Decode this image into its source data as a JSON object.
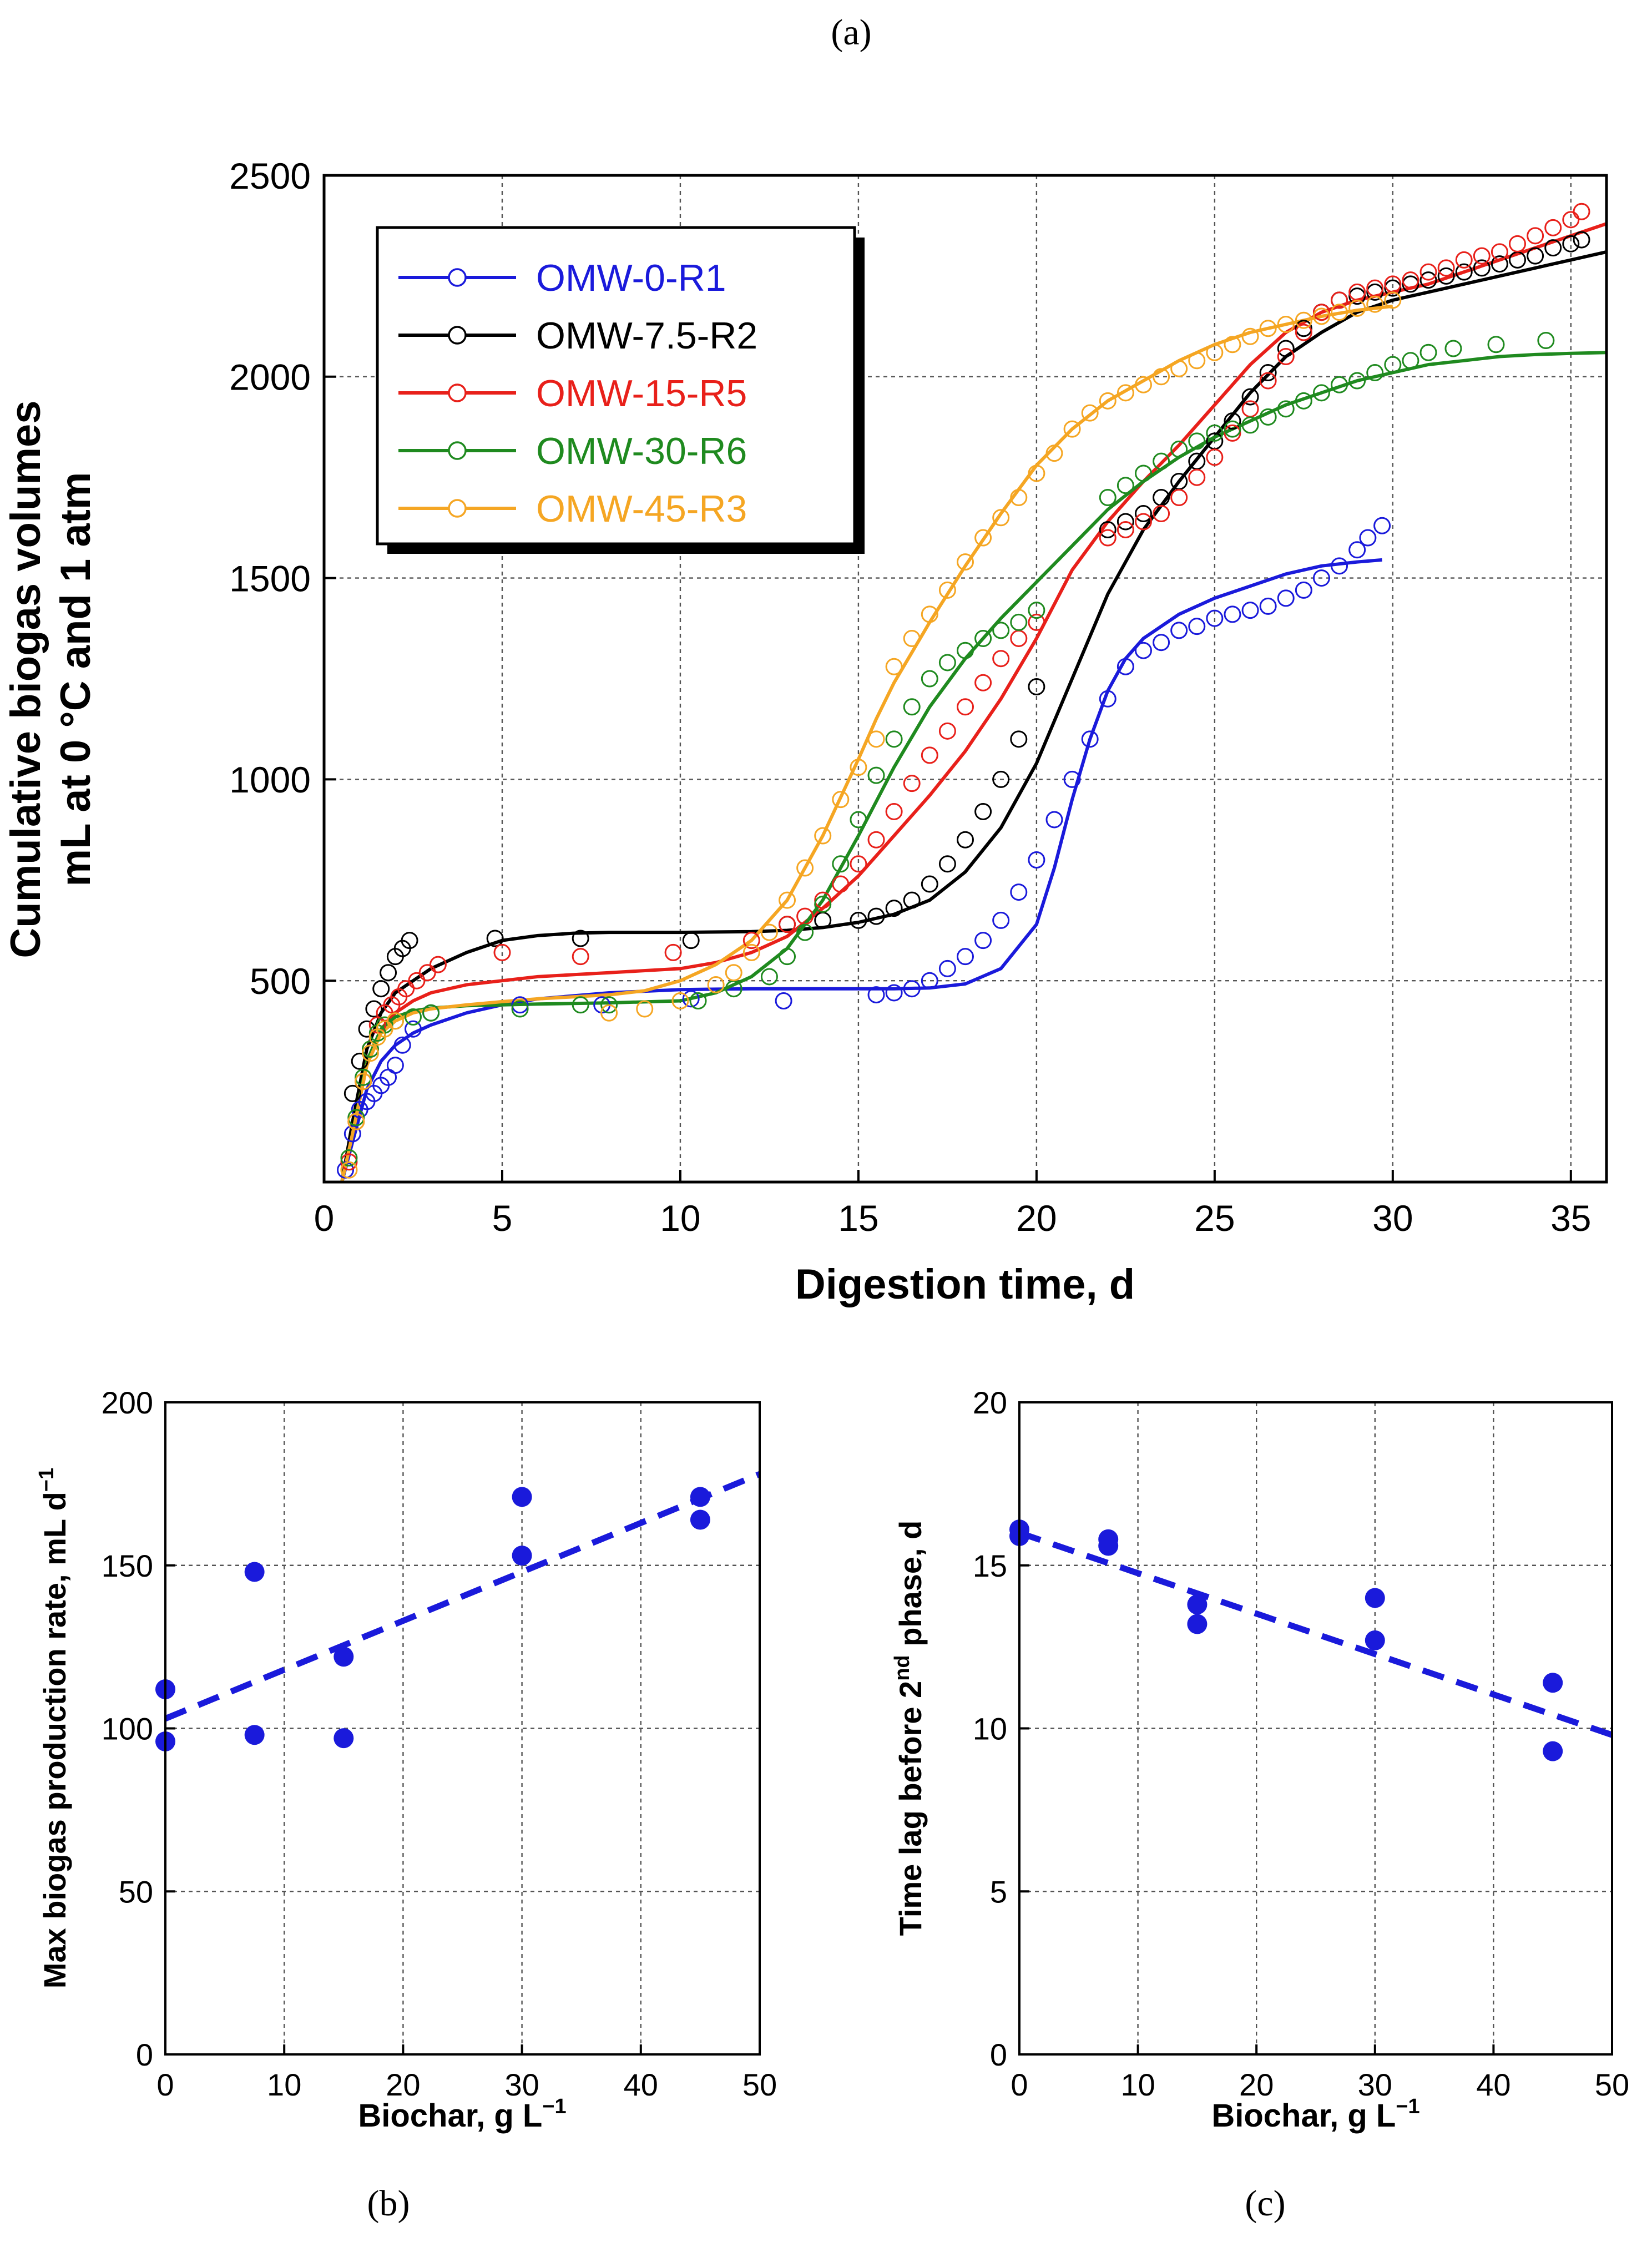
{
  "panel_labels": {
    "a": "(a)",
    "b": "(b)",
    "c": "(c)"
  },
  "chart_data": [
    {
      "id": "a",
      "type": "scatter",
      "xlabel": "Digestion time, d",
      "ylabel_line1": "Cumulative biogas volumes",
      "ylabel_line2": "mL at 0 °C and 1 atm",
      "xlim": [
        0,
        36
      ],
      "ylim": [
        0,
        2500
      ],
      "x_ticks": [
        0,
        5,
        10,
        15,
        20,
        25,
        30,
        35
      ],
      "y_ticks": [
        500,
        1000,
        1500,
        2000,
        2500
      ],
      "x_tick_labels": [
        "0",
        "5",
        "10",
        "15",
        "20",
        "25",
        "30",
        "35"
      ],
      "y_tick_labels": [
        "500",
        "1000",
        "1500",
        "2000",
        "2500"
      ],
      "grid": true,
      "legend_position": "top-left",
      "series": [
        {
          "name": "OMW-0-R1",
          "color": "#1a1adb",
          "fit_x": [
            0.5,
            0.8,
            1.2,
            1.6,
            2,
            2.5,
            3,
            4,
            5,
            6,
            8,
            10,
            12,
            14,
            16,
            17,
            18,
            19,
            20,
            20.5,
            21,
            21.5,
            22,
            22.5,
            23,
            24,
            25,
            26,
            27,
            28,
            29,
            29.7
          ],
          "fit_y": [
            0,
            100,
            230,
            300,
            340,
            370,
            390,
            420,
            440,
            455,
            470,
            478,
            480,
            480,
            480,
            482,
            492,
            530,
            640,
            780,
            950,
            1100,
            1220,
            1300,
            1350,
            1410,
            1450,
            1480,
            1510,
            1530,
            1540,
            1545
          ],
          "obs_x": [
            0.6,
            0.8,
            1.0,
            1.2,
            1.4,
            1.6,
            1.8,
            2.0,
            2.2,
            2.5,
            3.0,
            5.5,
            7.8,
            10.3,
            12.9,
            15.5,
            16.0,
            16.5,
            17.0,
            17.5,
            18.0,
            18.5,
            19.0,
            19.5,
            20.0,
            20.5,
            21.0,
            21.5,
            22.0,
            22.5,
            23.0,
            23.5,
            24.0,
            24.5,
            25.0,
            25.5,
            26.0,
            26.5,
            27.0,
            27.5,
            28.0,
            28.5,
            29.0,
            29.3,
            29.7
          ],
          "obs_y": [
            30,
            120,
            180,
            200,
            220,
            240,
            260,
            290,
            340,
            380,
            420,
            440,
            440,
            455,
            450,
            465,
            470,
            480,
            500,
            530,
            560,
            600,
            650,
            720,
            800,
            900,
            1000,
            1100,
            1200,
            1280,
            1320,
            1340,
            1370,
            1380,
            1400,
            1410,
            1420,
            1430,
            1450,
            1470,
            1500,
            1530,
            1570,
            1600,
            1630
          ]
        },
        {
          "name": "OMW-7.5-R2",
          "color": "#000000",
          "fit_x": [
            0.5,
            0.8,
            1.2,
            1.6,
            2,
            2.5,
            3,
            4,
            5,
            6,
            7,
            8,
            10,
            12,
            13,
            14,
            15,
            16,
            17,
            18,
            19,
            20,
            21,
            22,
            23,
            24,
            25,
            26,
            27,
            28,
            29,
            30,
            31,
            32,
            33,
            34,
            35,
            36
          ],
          "fit_y": [
            0,
            150,
            330,
            420,
            470,
            500,
            530,
            570,
            600,
            612,
            618,
            620,
            620,
            622,
            625,
            632,
            645,
            665,
            700,
            770,
            880,
            1040,
            1250,
            1460,
            1620,
            1740,
            1850,
            1960,
            2050,
            2110,
            2160,
            2190,
            2210,
            2230,
            2250,
            2270,
            2290,
            2310
          ],
          "obs_x": [
            0.8,
            1.0,
            1.2,
            1.4,
            1.6,
            1.8,
            2.0,
            2.2,
            2.4,
            4.8,
            7.2,
            10.3,
            13.0,
            14.0,
            15.0,
            15.5,
            16.0,
            16.5,
            17.0,
            17.5,
            18.0,
            18.5,
            19.0,
            19.5,
            20.0,
            22.0,
            22.5,
            23.0,
            23.5,
            24.0,
            24.5,
            25.0,
            25.5,
            26.0,
            26.5,
            27.0,
            27.5,
            28.0,
            28.5,
            29.0,
            29.5,
            30.0,
            30.5,
            31.0,
            31.5,
            32.0,
            32.5,
            33.0,
            33.5,
            34.0,
            34.5,
            35.0,
            35.3
          ],
          "obs_y": [
            220,
            300,
            380,
            430,
            480,
            520,
            560,
            580,
            600,
            605,
            605,
            600,
            640,
            650,
            650,
            660,
            680,
            700,
            740,
            790,
            850,
            920,
            1000,
            1100,
            1230,
            1620,
            1640,
            1660,
            1700,
            1740,
            1790,
            1840,
            1890,
            1950,
            2010,
            2070,
            2120,
            2160,
            2190,
            2200,
            2210,
            2220,
            2230,
            2240,
            2250,
            2260,
            2270,
            2280,
            2290,
            2300,
            2320,
            2330,
            2340
          ]
        },
        {
          "name": "OMW-15-R5",
          "color": "#e8201a",
          "fit_x": [
            0.5,
            0.8,
            1.2,
            1.6,
            2,
            2.5,
            3,
            4,
            5,
            6,
            8,
            10,
            11,
            12,
            13,
            14,
            15,
            16,
            17,
            18,
            19,
            20,
            21,
            22,
            23,
            24,
            25,
            26,
            27,
            28,
            29,
            30,
            31,
            32,
            33,
            34,
            35,
            36
          ],
          "fit_y": [
            0,
            120,
            290,
            380,
            420,
            450,
            470,
            490,
            500,
            510,
            520,
            530,
            545,
            570,
            610,
            680,
            760,
            860,
            960,
            1070,
            1200,
            1350,
            1520,
            1640,
            1740,
            1830,
            1930,
            2030,
            2110,
            2160,
            2190,
            2210,
            2230,
            2260,
            2290,
            2320,
            2350,
            2380
          ],
          "obs_x": [
            0.7,
            0.9,
            1.1,
            1.3,
            1.5,
            1.7,
            1.9,
            2.1,
            2.3,
            2.6,
            2.9,
            3.2,
            5.0,
            7.2,
            9.8,
            12.0,
            13.0,
            13.5,
            14.0,
            14.5,
            15.0,
            15.5,
            16.0,
            16.5,
            17.0,
            17.5,
            18.0,
            18.5,
            19.0,
            19.5,
            20.0,
            22.0,
            22.5,
            23.0,
            23.5,
            24.0,
            24.5,
            25.0,
            25.5,
            26.0,
            26.5,
            27.0,
            27.5,
            28.0,
            28.5,
            29.0,
            29.5,
            30.0,
            30.5,
            31.0,
            31.5,
            32.0,
            32.5,
            33.0,
            33.5,
            34.0,
            34.5,
            35.0,
            35.3
          ],
          "obs_y": [
            50,
            150,
            250,
            330,
            390,
            420,
            440,
            460,
            480,
            500,
            520,
            540,
            570,
            560,
            570,
            600,
            640,
            660,
            700,
            740,
            790,
            850,
            920,
            990,
            1060,
            1120,
            1180,
            1240,
            1300,
            1350,
            1390,
            1600,
            1620,
            1640,
            1660,
            1700,
            1750,
            1800,
            1860,
            1920,
            1990,
            2050,
            2110,
            2160,
            2190,
            2210,
            2220,
            2230,
            2240,
            2260,
            2270,
            2290,
            2300,
            2310,
            2330,
            2350,
            2370,
            2390,
            2410
          ]
        },
        {
          "name": "OMW-30-R6",
          "color": "#1f8a1f",
          "fit_x": [
            0.5,
            0.8,
            1.2,
            1.6,
            2,
            2.5,
            3,
            4,
            5,
            6,
            8,
            10,
            11,
            12,
            13,
            14,
            15,
            16,
            17,
            18,
            19,
            20,
            21,
            22,
            23,
            24,
            25,
            26,
            27,
            28,
            29,
            30,
            31,
            32,
            33,
            34,
            35,
            36
          ],
          "fit_y": [
            0,
            120,
            300,
            380,
            410,
            425,
            432,
            438,
            440,
            442,
            445,
            450,
            470,
            510,
            580,
            700,
            860,
            1030,
            1180,
            1300,
            1400,
            1490,
            1580,
            1670,
            1740,
            1800,
            1850,
            1890,
            1930,
            1960,
            1990,
            2010,
            2030,
            2040,
            2050,
            2055,
            2058,
            2060
          ],
          "obs_x": [
            0.7,
            0.9,
            1.1,
            1.3,
            1.5,
            1.7,
            2.0,
            2.5,
            3.0,
            5.5,
            7.2,
            8.0,
            10.5,
            11.5,
            12.5,
            13.0,
            13.5,
            14.0,
            14.5,
            15.0,
            15.5,
            16.0,
            16.5,
            17.0,
            17.5,
            18.0,
            18.5,
            19.0,
            19.5,
            20.0,
            22.0,
            22.5,
            23.0,
            23.5,
            24.0,
            24.5,
            25.0,
            25.5,
            26.0,
            26.5,
            27.0,
            27.5,
            28.0,
            28.5,
            29.0,
            29.5,
            30.0,
            30.5,
            31.0,
            31.7,
            32.9,
            34.3
          ],
          "obs_y": [
            60,
            160,
            260,
            330,
            370,
            390,
            400,
            410,
            420,
            430,
            440,
            440,
            450,
            480,
            510,
            560,
            620,
            690,
            790,
            900,
            1010,
            1100,
            1180,
            1250,
            1290,
            1320,
            1350,
            1370,
            1390,
            1420,
            1700,
            1730,
            1760,
            1790,
            1820,
            1840,
            1860,
            1870,
            1880,
            1900,
            1920,
            1940,
            1960,
            1980,
            1990,
            2010,
            2030,
            2040,
            2060,
            2070,
            2080,
            2090
          ]
        },
        {
          "name": "OMW-45-R3",
          "color": "#f5a623",
          "fit_x": [
            0.5,
            0.8,
            1.2,
            1.6,
            2,
            2.5,
            3,
            4,
            5,
            6,
            8,
            9,
            10,
            11,
            12,
            13,
            14,
            15,
            15.5,
            16,
            17,
            18,
            19,
            20,
            21,
            22,
            23,
            24,
            25,
            26,
            27,
            28,
            29,
            30
          ],
          "fit_y": [
            0,
            120,
            290,
            370,
            400,
            420,
            430,
            440,
            448,
            455,
            465,
            475,
            500,
            540,
            600,
            700,
            860,
            1050,
            1150,
            1240,
            1390,
            1530,
            1660,
            1780,
            1870,
            1940,
            1990,
            2040,
            2080,
            2110,
            2130,
            2150,
            2165,
            2175
          ],
          "obs_x": [
            0.7,
            0.9,
            1.1,
            1.3,
            1.5,
            1.7,
            2.0,
            8.0,
            9.0,
            10.0,
            11.0,
            11.5,
            12.0,
            12.5,
            13.0,
            13.5,
            14.0,
            14.5,
            15.0,
            15.5,
            16.0,
            16.5,
            17.0,
            17.5,
            18.0,
            18.5,
            19.0,
            19.5,
            20.0,
            20.5,
            21.0,
            21.5,
            22.0,
            22.5,
            23.0,
            23.5,
            24.0,
            24.5,
            25.0,
            25.5,
            26.0,
            26.5,
            27.0,
            27.5,
            28.0,
            28.5,
            29.0,
            29.5,
            30.0
          ],
          "obs_y": [
            30,
            150,
            250,
            320,
            360,
            380,
            400,
            420,
            430,
            450,
            490,
            520,
            570,
            620,
            700,
            780,
            860,
            950,
            1030,
            1100,
            1280,
            1350,
            1410,
            1470,
            1540,
            1600,
            1650,
            1700,
            1760,
            1810,
            1870,
            1910,
            1940,
            1960,
            1980,
            2000,
            2020,
            2040,
            2060,
            2080,
            2100,
            2120,
            2130,
            2140,
            2150,
            2160,
            2170,
            2180,
            2190
          ]
        }
      ]
    },
    {
      "id": "b",
      "type": "scatter",
      "xlabel": "Biochar, g L",
      "xlabel_sup": "−1",
      "ylabel": "Max biogas production rate, mL d",
      "ylabel_sup": "−1",
      "xlim": [
        0,
        50
      ],
      "ylim": [
        0,
        200
      ],
      "x_ticks": [
        0,
        10,
        20,
        30,
        40,
        50
      ],
      "y_ticks": [
        0,
        50,
        100,
        150,
        200
      ],
      "x_tick_labels": [
        "0",
        "10",
        "20",
        "30",
        "40",
        "50"
      ],
      "y_tick_labels": [
        "0",
        "50",
        "100",
        "150",
        "200"
      ],
      "grid": true,
      "color": "#1a1adb",
      "points_x": [
        0,
        0,
        7.5,
        7.5,
        15,
        15,
        30,
        30,
        45,
        45
      ],
      "points_y": [
        112,
        96,
        148,
        98,
        122,
        97,
        171,
        153,
        171,
        164
      ],
      "trend_x": [
        0,
        50
      ],
      "trend_y": [
        103,
        178
      ]
    },
    {
      "id": "c",
      "type": "scatter",
      "xlabel": "Biochar, g L",
      "xlabel_sup": "−1",
      "ylabel_pre": "Time lag before 2",
      "ylabel_sup": "nd",
      "ylabel_post": " phase, d",
      "xlim": [
        0,
        50
      ],
      "ylim": [
        0,
        20
      ],
      "x_ticks": [
        0,
        10,
        20,
        30,
        40,
        50
      ],
      "y_ticks": [
        0,
        5,
        10,
        15,
        20
      ],
      "x_tick_labels": [
        "0",
        "10",
        "20",
        "30",
        "40",
        "50"
      ],
      "y_tick_labels": [
        "0",
        "5",
        "10",
        "15",
        "20"
      ],
      "grid": true,
      "color": "#1a1adb",
      "points_x": [
        0,
        0,
        7.5,
        7.5,
        15,
        15,
        30,
        30,
        45,
        45
      ],
      "points_y": [
        16.1,
        15.9,
        15.8,
        15.6,
        13.8,
        13.2,
        14.0,
        12.7,
        11.4,
        9.3
      ],
      "trend_x": [
        0,
        50
      ],
      "trend_y": [
        16.0,
        9.8
      ]
    }
  ]
}
